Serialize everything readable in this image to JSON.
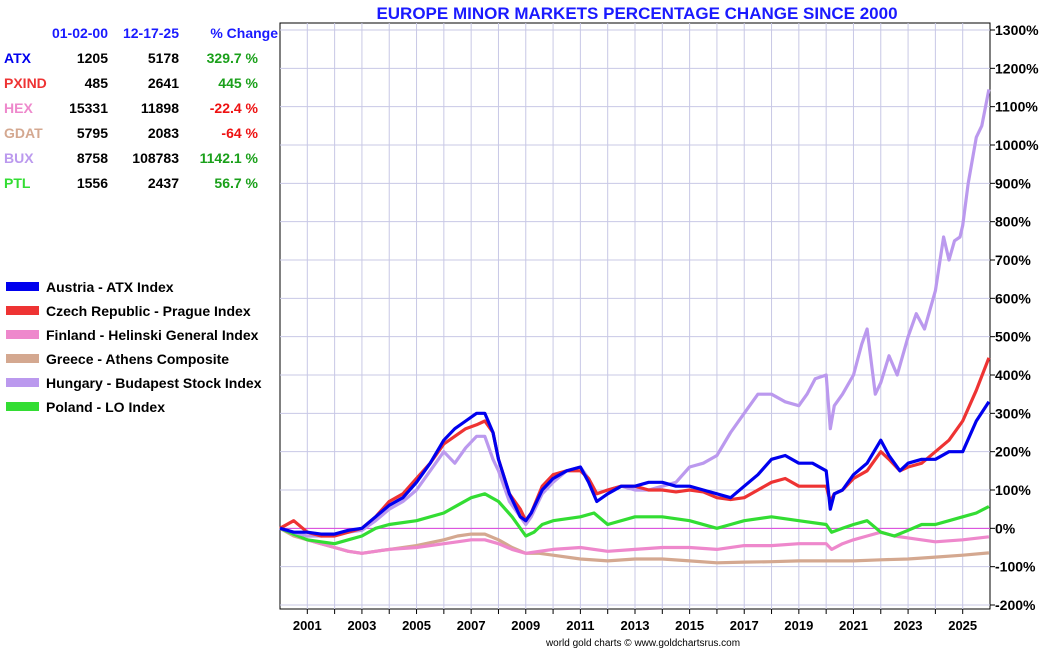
{
  "chart_data": {
    "type": "line",
    "title": "EUROPE MINOR MARKETS PERCENTAGE CHANGE SINCE 2000",
    "xlabel": "",
    "ylabel": "",
    "xlim": [
      2000.0,
      2026.0
    ],
    "ylim": [
      -200,
      1300
    ],
    "y_ticks": [
      -200,
      -100,
      0,
      100,
      200,
      300,
      400,
      500,
      600,
      700,
      800,
      900,
      1000,
      1100,
      1200,
      1300
    ],
    "y_tick_labels": [
      "-200%",
      "-100%",
      "0%",
      "100%",
      "200%",
      "300%",
      "400%",
      "500%",
      "600%",
      "700%",
      "800%",
      "900%",
      "1000%",
      "1100%",
      "1200%",
      "1300%"
    ],
    "x_ticks": [
      2001,
      2003,
      2005,
      2007,
      2009,
      2011,
      2013,
      2015,
      2017,
      2019,
      2021,
      2023,
      2025
    ],
    "x_tick_labels": [
      "2001",
      "2003",
      "2005",
      "2007",
      "2009",
      "2011",
      "2013",
      "2015",
      "2017",
      "2019",
      "2021",
      "2023",
      "2025"
    ],
    "credit": "world gold charts © www.goldchartsrus.com",
    "table": {
      "headers": [
        "01-02-00",
        "12-17-25",
        "% Change"
      ],
      "rows": [
        {
          "ticker": "ATX",
          "start": "1205",
          "end": "5178",
          "change": "329.7 %",
          "color": "#0000ee",
          "change_color": "#1aa01a"
        },
        {
          "ticker": "PXIND",
          "start": "485",
          "end": "2641",
          "change": "445 %",
          "color": "#ee3333",
          "change_color": "#1aa01a"
        },
        {
          "ticker": "HEX",
          "start": "15331",
          "end": "11898",
          "change": "-22.4 %",
          "color": "#ee88cc",
          "change_color": "#ee1111"
        },
        {
          "ticker": "GDAT",
          "start": "5795",
          "end": "2083",
          "change": "-64 %",
          "color": "#d4a890",
          "change_color": "#ee1111"
        },
        {
          "ticker": "BUX",
          "start": "8758",
          "end": "108783",
          "change": "1142.1 %",
          "color": "#bb99ee",
          "change_color": "#1aa01a"
        },
        {
          "ticker": "PTL",
          "start": "1556",
          "end": "2437",
          "change": "56.7 %",
          "color": "#33dd33",
          "change_color": "#1aa01a"
        }
      ]
    },
    "series": [
      {
        "name": "Austria - ATX Index",
        "color": "#0000ee",
        "x": [
          2000.0,
          2000.5,
          2001.0,
          2001.5,
          2002.0,
          2002.5,
          2003.0,
          2003.5,
          2004.0,
          2004.5,
          2005.0,
          2005.5,
          2006.0,
          2006.4,
          2006.8,
          2007.2,
          2007.5,
          2007.8,
          2008.0,
          2008.4,
          2008.8,
          2009.0,
          2009.2,
          2009.6,
          2010.0,
          2010.5,
          2011.0,
          2011.3,
          2011.6,
          2012.0,
          2012.5,
          2013.0,
          2013.5,
          2014.0,
          2014.5,
          2015.0,
          2015.5,
          2016.0,
          2016.5,
          2017.0,
          2017.5,
          2018.0,
          2018.5,
          2019.0,
          2019.5,
          2020.0,
          2020.15,
          2020.3,
          2020.6,
          2021.0,
          2021.5,
          2022.0,
          2022.3,
          2022.7,
          2023.0,
          2023.5,
          2024.0,
          2024.5,
          2025.0,
          2025.5,
          2025.96
        ],
        "y": [
          0,
          -10,
          -10,
          -15,
          -15,
          -5,
          0,
          30,
          60,
          80,
          120,
          170,
          230,
          260,
          280,
          300,
          300,
          250,
          180,
          90,
          30,
          20,
          40,
          100,
          130,
          150,
          160,
          120,
          70,
          90,
          110,
          110,
          120,
          120,
          110,
          110,
          100,
          90,
          80,
          110,
          140,
          180,
          190,
          170,
          170,
          150,
          50,
          90,
          100,
          140,
          170,
          230,
          190,
          150,
          170,
          180,
          180,
          200,
          200,
          280,
          330
        ]
      },
      {
        "name": "Czech Republic - Prague Index",
        "color": "#ee3333",
        "x": [
          2000.0,
          2000.5,
          2001.0,
          2001.5,
          2002.0,
          2002.5,
          2003.0,
          2003.5,
          2004.0,
          2004.5,
          2005.0,
          2005.5,
          2006.0,
          2006.4,
          2006.8,
          2007.2,
          2007.5,
          2007.8,
          2008.0,
          2008.4,
          2008.8,
          2009.0,
          2009.2,
          2009.6,
          2010.0,
          2010.5,
          2011.0,
          2011.3,
          2011.6,
          2012.0,
          2012.5,
          2013.0,
          2013.5,
          2014.0,
          2014.5,
          2015.0,
          2015.5,
          2016.0,
          2016.5,
          2017.0,
          2017.5,
          2018.0,
          2018.5,
          2019.0,
          2019.5,
          2020.0,
          2020.15,
          2020.3,
          2020.6,
          2021.0,
          2021.5,
          2022.0,
          2022.3,
          2022.7,
          2023.0,
          2023.5,
          2024.0,
          2024.5,
          2025.0,
          2025.5,
          2025.96
        ],
        "y": [
          0,
          20,
          -10,
          -20,
          -20,
          -10,
          0,
          30,
          70,
          90,
          130,
          170,
          220,
          240,
          260,
          270,
          280,
          250,
          180,
          90,
          50,
          20,
          40,
          110,
          140,
          150,
          150,
          130,
          90,
          100,
          110,
          110,
          100,
          100,
          95,
          100,
          95,
          80,
          75,
          80,
          100,
          120,
          130,
          110,
          110,
          110,
          70,
          90,
          100,
          130,
          150,
          200,
          180,
          150,
          160,
          170,
          200,
          230,
          280,
          360,
          445
        ]
      },
      {
        "name": "Finland - Helinski General Index",
        "color": "#ee88cc",
        "x": [
          2000.0,
          2000.5,
          2001.0,
          2001.5,
          2002.0,
          2002.5,
          2003.0,
          2003.5,
          2004.0,
          2005.0,
          2006.0,
          2006.5,
          2007.0,
          2007.5,
          2008.0,
          2008.5,
          2009.0,
          2009.5,
          2010.0,
          2011.0,
          2012.0,
          2013.0,
          2014.0,
          2015.0,
          2016.0,
          2017.0,
          2018.0,
          2019.0,
          2020.0,
          2020.2,
          2020.6,
          2021.0,
          2021.5,
          2022.0,
          2022.5,
          2023.0,
          2024.0,
          2025.0,
          2025.96
        ],
        "y": [
          0,
          -15,
          -30,
          -40,
          -50,
          -60,
          -65,
          -60,
          -55,
          -50,
          -40,
          -35,
          -30,
          -30,
          -40,
          -55,
          -65,
          -60,
          -55,
          -50,
          -60,
          -55,
          -50,
          -50,
          -55,
          -45,
          -45,
          -40,
          -40,
          -55,
          -40,
          -30,
          -20,
          -10,
          -20,
          -25,
          -35,
          -30,
          -22
        ]
      },
      {
        "name": "Greece - Athens Composite",
        "color": "#d4a890",
        "x": [
          2000.0,
          2000.5,
          2001.0,
          2001.5,
          2002.0,
          2002.5,
          2003.0,
          2003.5,
          2004.0,
          2005.0,
          2006.0,
          2006.5,
          2007.0,
          2007.5,
          2008.0,
          2008.5,
          2009.0,
          2009.5,
          2010.0,
          2011.0,
          2012.0,
          2013.0,
          2014.0,
          2015.0,
          2016.0,
          2017.0,
          2018.0,
          2019.0,
          2020.0,
          2021.0,
          2022.0,
          2023.0,
          2024.0,
          2025.0,
          2025.96
        ],
        "y": [
          0,
          -20,
          -30,
          -40,
          -50,
          -60,
          -65,
          -60,
          -55,
          -45,
          -30,
          -20,
          -15,
          -15,
          -30,
          -50,
          -65,
          -65,
          -70,
          -80,
          -85,
          -80,
          -80,
          -85,
          -90,
          -88,
          -87,
          -85,
          -85,
          -85,
          -82,
          -80,
          -75,
          -70,
          -64
        ]
      },
      {
        "name": "Hungary - Budapest Stock Index",
        "color": "#bb99ee",
        "x": [
          2000.0,
          2000.5,
          2001.0,
          2001.5,
          2002.0,
          2002.5,
          2003.0,
          2003.5,
          2004.0,
          2004.5,
          2005.0,
          2005.5,
          2006.0,
          2006.4,
          2006.8,
          2007.2,
          2007.5,
          2007.8,
          2008.0,
          2008.4,
          2008.8,
          2009.0,
          2009.2,
          2009.6,
          2010.0,
          2010.5,
          2011.0,
          2011.3,
          2011.6,
          2012.0,
          2012.5,
          2013.0,
          2013.5,
          2014.0,
          2014.5,
          2015.0,
          2015.5,
          2016.0,
          2016.5,
          2017.0,
          2017.5,
          2018.0,
          2018.5,
          2019.0,
          2019.3,
          2019.6,
          2020.0,
          2020.15,
          2020.3,
          2020.6,
          2021.0,
          2021.3,
          2021.5,
          2021.8,
          2022.0,
          2022.3,
          2022.6,
          2023.0,
          2023.3,
          2023.6,
          2024.0,
          2024.3,
          2024.5,
          2024.7,
          2024.9,
          2025.0,
          2025.2,
          2025.5,
          2025.7,
          2025.96
        ],
        "y": [
          0,
          -10,
          -20,
          -20,
          -15,
          -10,
          -5,
          20,
          50,
          70,
          100,
          150,
          200,
          170,
          210,
          240,
          240,
          180,
          150,
          70,
          30,
          10,
          30,
          90,
          120,
          150,
          160,
          130,
          90,
          100,
          110,
          100,
          100,
          110,
          120,
          160,
          170,
          190,
          250,
          300,
          350,
          350,
          330,
          320,
          350,
          390,
          400,
          260,
          320,
          350,
          400,
          480,
          520,
          350,
          380,
          450,
          400,
          500,
          560,
          520,
          620,
          760,
          700,
          750,
          760,
          790,
          900,
          1020,
          1050,
          1145
        ]
      },
      {
        "name": "Poland - LO Index",
        "color": "#33dd33",
        "x": [
          2000.0,
          2000.5,
          2001.0,
          2001.5,
          2002.0,
          2002.5,
          2003.0,
          2003.5,
          2004.0,
          2005.0,
          2006.0,
          2006.5,
          2007.0,
          2007.5,
          2008.0,
          2008.5,
          2009.0,
          2009.3,
          2009.6,
          2010.0,
          2011.0,
          2011.5,
          2012.0,
          2013.0,
          2014.0,
          2015.0,
          2016.0,
          2016.5,
          2017.0,
          2018.0,
          2019.0,
          2020.0,
          2020.2,
          2020.6,
          2021.0,
          2021.5,
          2022.0,
          2022.5,
          2023.0,
          2023.5,
          2024.0,
          2024.5,
          2025.0,
          2025.5,
          2025.96
        ],
        "y": [
          0,
          -15,
          -30,
          -35,
          -40,
          -30,
          -20,
          0,
          10,
          20,
          40,
          60,
          80,
          90,
          70,
          30,
          -20,
          -10,
          10,
          20,
          30,
          40,
          10,
          30,
          30,
          20,
          0,
          10,
          20,
          30,
          20,
          10,
          -10,
          0,
          10,
          20,
          -10,
          -20,
          -5,
          10,
          10,
          20,
          30,
          40,
          57
        ]
      }
    ]
  }
}
